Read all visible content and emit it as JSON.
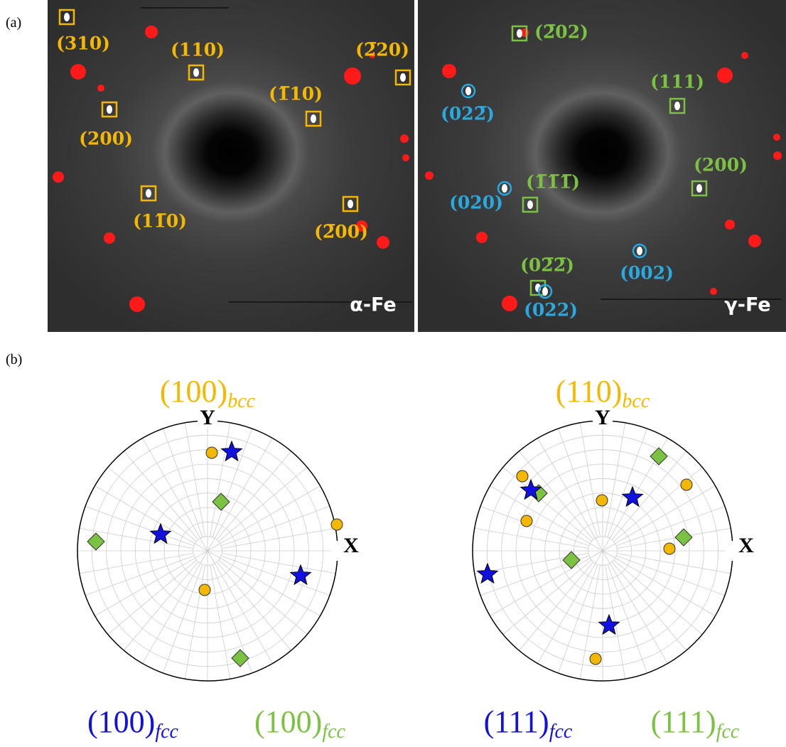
{
  "panel_a": {
    "label": "(a)",
    "left_image": {
      "phase": "α-Fe",
      "spots": [
        "(310)",
        "(110)",
        "(2̅20)",
        "(200)",
        "(1̅10)",
        "(11̅0)",
        "(2̅00)"
      ]
    },
    "right_image": {
      "phase": "γ-Fe",
      "fcc_spots_green": [
        "(2̅02)",
        "(111)",
        "(200)",
        "(1̅1̅1̅)",
        "(02̅2̅)"
      ],
      "fcc_spots_blue": [
        "(022̅)",
        "(020)",
        "(002)",
        "(022)"
      ]
    }
  },
  "panel_b": {
    "label": "(b)",
    "projections": [
      {
        "title": "(100)",
        "title_sub": "bcc",
        "axis_y": "Y",
        "axis_x": "X",
        "blue_label": "(100)",
        "blue_sub": "fcc",
        "green_label": "(100)",
        "green_sub": "fcc"
      },
      {
        "title": "(110)",
        "title_sub": "bcc",
        "axis_y": "Y",
        "axis_x": "X",
        "blue_label": "(111)",
        "blue_sub": "fcc",
        "green_label": "(111)",
        "green_sub": "fcc"
      }
    ]
  }
}
